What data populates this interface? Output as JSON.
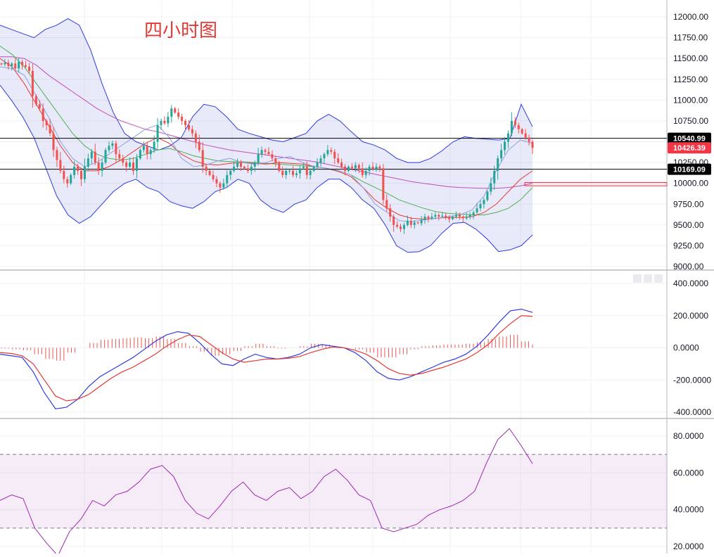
{
  "chart_title": "四小时图",
  "chart_data": [
    {
      "pane": "price",
      "type": "candlestick",
      "ylim": [
        9000,
        12000
      ],
      "yticks": [
        "12000.00",
        "11750.00",
        "11500.00",
        "11250.00",
        "11000.00",
        "10750.00",
        "10500.00",
        "10250.00",
        "10000.00",
        "9750.00",
        "9500.00",
        "9250.00",
        "9000.00"
      ],
      "horizontal_lines": [
        10540.99,
        10169.09
      ],
      "price_labels": [
        {
          "text": "10540.99",
          "value": 10540.99,
          "color": "#000000"
        },
        {
          "text": "10426.39",
          "value": 10426.39,
          "color": "#f23645"
        },
        {
          "text": "10169.09",
          "value": 10169.09,
          "color": "#000000"
        }
      ],
      "zone": [
        9970,
        10010
      ],
      "closes": [
        11430,
        11450,
        11410,
        11440,
        11380,
        11460,
        11420,
        11400,
        11350,
        11050,
        10950,
        10900,
        10750,
        10700,
        10600,
        10400,
        10280,
        10150,
        10050,
        10000,
        10100,
        10200,
        10150,
        10050,
        10200,
        10300,
        10380,
        10250,
        10150,
        10250,
        10400,
        10450,
        10480,
        10350,
        10300,
        10250,
        10200,
        10250,
        10150,
        10300,
        10400,
        10450,
        10350,
        10400,
        10500,
        10700,
        10750,
        10720,
        10800,
        10900,
        10850,
        10800,
        10750,
        10700,
        10650,
        10600,
        10500,
        10400,
        10200,
        10150,
        10100,
        10050,
        10000,
        9950,
        10000,
        10100,
        10150,
        10200,
        10250,
        10200,
        10180,
        10150,
        10200,
        10250,
        10350,
        10400,
        10380,
        10350,
        10300,
        10250,
        10150,
        10100,
        10150,
        10150,
        10100,
        10120,
        10180,
        10200,
        10100,
        10150,
        10200,
        10250,
        10300,
        10350,
        10400,
        10380,
        10300,
        10250,
        10200,
        10150,
        10200,
        10180,
        10220,
        10180,
        10100,
        10150,
        10200,
        10170,
        10200,
        10180,
        9800,
        9700,
        9600,
        9500,
        9480,
        9450,
        9500,
        9550,
        9500,
        9530,
        9520,
        9560,
        9600,
        9580,
        9600,
        9620,
        9600,
        9610,
        9590,
        9570,
        9600,
        9620,
        9600,
        9580,
        9600,
        9620,
        9650,
        9700,
        9750,
        9800,
        9900,
        10000,
        10150,
        10300,
        10400,
        10500,
        10600,
        10750,
        10700,
        10650,
        10600,
        10550,
        10500,
        10426
      ],
      "bollinger_upper": [
        11900,
        11850,
        11800,
        11750,
        11850,
        11900,
        11980,
        11900,
        11600,
        11200,
        10850,
        10600,
        10500,
        10450,
        10400,
        10450,
        10550,
        10800,
        10950,
        10920,
        10800,
        10650,
        10600,
        10560,
        10520,
        10500,
        10550,
        10600,
        10750,
        10830,
        10750,
        10620,
        10500,
        10460,
        10400,
        10300,
        10250,
        10250,
        10300,
        10390,
        10500,
        10560,
        10540,
        10530,
        10520,
        10540,
        10950,
        10680
      ],
      "bollinger_lower": [
        11180,
        11000,
        10800,
        10550,
        10200,
        9850,
        9620,
        9520,
        9600,
        9750,
        9900,
        10000,
        10050,
        9950,
        9900,
        9780,
        9730,
        9700,
        9780,
        9900,
        9950,
        10050,
        10000,
        9800,
        9700,
        9650,
        9750,
        9800,
        9950,
        10050,
        10050,
        9950,
        9800,
        9700,
        9500,
        9250,
        9170,
        9180,
        9250,
        9400,
        9520,
        9530,
        9450,
        9330,
        9180,
        9200,
        9250,
        9380
      ],
      "ma_fast": [
        11400,
        11380,
        11300,
        11050,
        10800,
        10500,
        10300,
        10200,
        10250,
        10350,
        10450,
        10550,
        10650,
        10700,
        10550,
        10300,
        10200,
        10220,
        10270,
        10300,
        10250,
        10230,
        10250,
        10300,
        10320,
        10250,
        10200,
        10180,
        10150,
        10100,
        9950,
        9750,
        9650,
        9550,
        9540,
        9560,
        9580,
        9600,
        9620,
        9680,
        9850,
        10150,
        10400,
        10520,
        10480
      ],
      "ma_mid": [
        11500,
        11400,
        11200,
        10950,
        10700,
        10450,
        10250,
        10150,
        10150,
        10200,
        10280,
        10380,
        10480,
        10550,
        10480,
        10350,
        10270,
        10230,
        10220,
        10240,
        10250,
        10240,
        10230,
        10250,
        10240,
        10230,
        10200,
        10180,
        10140,
        10080,
        9950,
        9800,
        9700,
        9620,
        9580,
        9570,
        9580,
        9590,
        9590,
        9600,
        9650,
        9750,
        9900,
        10050,
        10150
      ],
      "ma_slow": [
        11650,
        11550,
        11400,
        11200,
        11000,
        10800,
        10600,
        10450,
        10350,
        10300,
        10280,
        10300,
        10350,
        10400,
        10420,
        10380,
        10330,
        10300,
        10270,
        10260,
        10260,
        10250,
        10240,
        10230,
        10220,
        10210,
        10200,
        10180,
        10150,
        10100,
        10020,
        9950,
        9880,
        9800,
        9750,
        9700,
        9660,
        9640,
        9630,
        9620,
        9620,
        9650,
        9700,
        9800,
        9950
      ],
      "ma_long": [
        11520,
        11520,
        11500,
        11420,
        11300,
        11200,
        11100,
        11000,
        10900,
        10820,
        10750,
        10700,
        10650,
        10620,
        10580,
        10540,
        10500,
        10460,
        10430,
        10400,
        10380,
        10360,
        10340,
        10320,
        10300,
        10280,
        10260,
        10230,
        10200,
        10170,
        10140,
        10110,
        10080,
        10050,
        10020,
        10000,
        9980,
        9960,
        9950,
        9945,
        9940,
        9940,
        9950,
        9970,
        10000
      ]
    },
    {
      "pane": "macd",
      "type": "line",
      "ylim": [
        -400,
        400
      ],
      "yticks": [
        "400.0000",
        "200.0000",
        "0.0000",
        "-200.0000",
        "-400.0000"
      ],
      "macd_line": [
        -40,
        -50,
        -60,
        -150,
        -280,
        -380,
        -370,
        -320,
        -240,
        -180,
        -140,
        -100,
        -60,
        -10,
        40,
        80,
        100,
        90,
        30,
        -40,
        -100,
        -110,
        -70,
        -40,
        -60,
        -70,
        -60,
        -40,
        0,
        20,
        10,
        0,
        -30,
        -80,
        -150,
        -190,
        -200,
        -180,
        -150,
        -120,
        -90,
        -70,
        -40,
        10,
        80,
        160,
        230,
        240,
        220
      ],
      "signal_line": [
        -30,
        -35,
        -50,
        -100,
        -200,
        -300,
        -330,
        -320,
        -290,
        -240,
        -190,
        -150,
        -120,
        -80,
        -40,
        10,
        50,
        80,
        70,
        20,
        -30,
        -70,
        -90,
        -80,
        -70,
        -70,
        -65,
        -55,
        -30,
        -10,
        5,
        0,
        -15,
        -40,
        -80,
        -130,
        -160,
        -170,
        -160,
        -140,
        -120,
        -95,
        -70,
        -30,
        20,
        90,
        150,
        200,
        195
      ],
      "histogram": [
        -5,
        -10,
        -15,
        -40,
        -70,
        -80,
        -30,
        0,
        30,
        50,
        55,
        60,
        65,
        60,
        70,
        55,
        30,
        10,
        -25,
        -50,
        -40,
        -20,
        10,
        25,
        10,
        -5,
        0,
        10,
        25,
        20,
        5,
        0,
        -10,
        -30,
        -60,
        -60,
        -40,
        -10,
        10,
        15,
        20,
        20,
        25,
        35,
        55,
        70,
        80,
        40,
        20
      ]
    },
    {
      "pane": "rsi",
      "type": "line",
      "ylim": [
        20,
        80
      ],
      "yticks": [
        "80.0000",
        "60.0000",
        "40.0000",
        "20.0000"
      ],
      "band": [
        30,
        70
      ],
      "rsi_line": [
        45,
        48,
        46,
        30,
        22,
        15,
        28,
        35,
        45,
        42,
        48,
        50,
        55,
        62,
        64,
        58,
        45,
        38,
        35,
        42,
        50,
        55,
        48,
        45,
        50,
        52,
        46,
        50,
        58,
        62,
        56,
        48,
        45,
        30,
        28,
        30,
        32,
        37,
        40,
        42,
        45,
        50,
        65,
        78,
        84,
        75,
        65
      ]
    }
  ],
  "panel_buttons": [
    "▮",
    "▮",
    "▮"
  ]
}
